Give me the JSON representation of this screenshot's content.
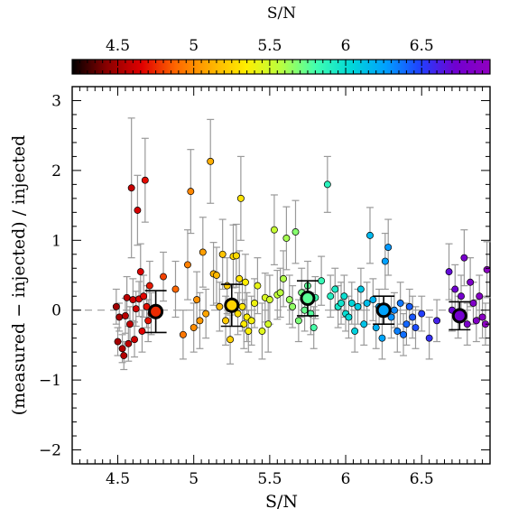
{
  "chart_data": {
    "type": "scatter",
    "xlabel": "S/N",
    "ylabel": "(measured − injected) / injected",
    "colorbar_label": "S/N",
    "xlim": [
      4.2,
      6.95
    ],
    "ylim": [
      -2.2,
      3.2
    ],
    "x_ticks": [
      "4.5",
      "5",
      "5.5",
      "6",
      "6.5"
    ],
    "x_tick_values": [
      4.5,
      5.0,
      5.5,
      6.0,
      6.5
    ],
    "y_ticks": [
      "−2",
      "−1",
      "0",
      "1",
      "2",
      "3"
    ],
    "y_tick_values": [
      -2,
      -1,
      0,
      1,
      2,
      3
    ],
    "colorbar_ticks": [
      "4.5",
      "5",
      "5.5",
      "6",
      "6.5"
    ],
    "colorbar_tick_values": [
      4.5,
      5.0,
      5.5,
      6.0,
      6.5
    ],
    "colormap": [
      "#000000",
      "#8b0000",
      "#e00000",
      "#ff6a00",
      "#ffb000",
      "#ffee00",
      "#b8ff40",
      "#40ffb0",
      "#00d8d8",
      "#00a0ff",
      "#2040ff",
      "#7000d0",
      "#9000c0"
    ],
    "reference_line": {
      "y": 0,
      "style": "dashed"
    },
    "grid": false,
    "points": [
      {
        "x": 4.49,
        "y": 0.05,
        "err": 0.25
      },
      {
        "x": 4.5,
        "y": -0.45,
        "err": 0.2
      },
      {
        "x": 4.51,
        "y": -0.1,
        "err": 0.2
      },
      {
        "x": 4.53,
        "y": -0.55,
        "err": 0.2
      },
      {
        "x": 4.54,
        "y": -0.65,
        "err": 0.2
      },
      {
        "x": 4.55,
        "y": -0.08,
        "err": 0.25
      },
      {
        "x": 4.56,
        "y": 0.18,
        "err": 0.3
      },
      {
        "x": 4.57,
        "y": -0.48,
        "err": 0.25
      },
      {
        "x": 4.58,
        "y": -0.2,
        "err": 0.25
      },
      {
        "x": 4.59,
        "y": 1.75,
        "err": 1.0
      },
      {
        "x": 4.6,
        "y": 0.15,
        "err": 0.3
      },
      {
        "x": 4.61,
        "y": -0.42,
        "err": 0.25
      },
      {
        "x": 4.62,
        "y": 0.02,
        "err": 0.25
      },
      {
        "x": 4.63,
        "y": 1.43,
        "err": 0.5
      },
      {
        "x": 4.64,
        "y": 0.16,
        "err": 0.25
      },
      {
        "x": 4.65,
        "y": 0.55,
        "err": 0.4
      },
      {
        "x": 4.66,
        "y": -0.3,
        "err": 0.3
      },
      {
        "x": 4.67,
        "y": 0.2,
        "err": 0.3
      },
      {
        "x": 4.68,
        "y": 1.86,
        "err": 0.6
      },
      {
        "x": 4.69,
        "y": 0.05,
        "err": 0.3
      },
      {
        "x": 4.7,
        "y": -0.15,
        "err": 0.3
      },
      {
        "x": 4.71,
        "y": 0.35,
        "err": 0.35
      },
      {
        "x": 4.72,
        "y": -0.05,
        "err": 0.3
      },
      {
        "x": 4.8,
        "y": 0.48,
        "err": 0.35
      },
      {
        "x": 4.88,
        "y": 0.3,
        "err": 0.4
      },
      {
        "x": 4.93,
        "y": -0.35,
        "err": 0.35
      },
      {
        "x": 4.96,
        "y": 0.65,
        "err": 0.5
      },
      {
        "x": 4.98,
        "y": 1.7,
        "err": 0.6
      },
      {
        "x": 5.0,
        "y": -0.25,
        "err": 0.35
      },
      {
        "x": 5.02,
        "y": 0.15,
        "err": 0.4
      },
      {
        "x": 5.04,
        "y": -0.15,
        "err": 0.4
      },
      {
        "x": 5.06,
        "y": 0.83,
        "err": 0.5
      },
      {
        "x": 5.08,
        "y": -0.05,
        "err": 0.35
      },
      {
        "x": 5.11,
        "y": 2.13,
        "err": 0.6
      },
      {
        "x": 5.13,
        "y": 0.52,
        "err": 0.45
      },
      {
        "x": 5.15,
        "y": 0.5,
        "err": 0.4
      },
      {
        "x": 5.17,
        "y": 0.05,
        "err": 0.35
      },
      {
        "x": 5.19,
        "y": 0.8,
        "err": 0.5
      },
      {
        "x": 5.21,
        "y": -0.15,
        "err": 0.35
      },
      {
        "x": 5.22,
        "y": 0.35,
        "err": 0.4
      },
      {
        "x": 5.24,
        "y": -0.42,
        "err": 0.35
      },
      {
        "x": 5.26,
        "y": 0.77,
        "err": 0.45
      },
      {
        "x": 5.28,
        "y": 0.78,
        "err": 0.45
      },
      {
        "x": 5.29,
        "y": -0.05,
        "err": 0.3
      },
      {
        "x": 5.3,
        "y": 0.45,
        "err": 0.4
      },
      {
        "x": 5.31,
        "y": 1.6,
        "err": 0.6
      },
      {
        "x": 5.32,
        "y": 0.05,
        "err": 0.35
      },
      {
        "x": 5.33,
        "y": -0.2,
        "err": 0.35
      },
      {
        "x": 5.34,
        "y": 0.4,
        "err": 0.4
      },
      {
        "x": 5.35,
        "y": -0.1,
        "err": 0.35
      },
      {
        "x": 5.36,
        "y": -0.3,
        "err": 0.3
      },
      {
        "x": 5.38,
        "y": -0.15,
        "err": 0.35
      },
      {
        "x": 5.4,
        "y": 0.1,
        "err": 0.35
      },
      {
        "x": 5.42,
        "y": 0.35,
        "err": 0.4
      },
      {
        "x": 5.45,
        "y": -0.3,
        "err": 0.4
      },
      {
        "x": 5.47,
        "y": 0.18,
        "err": 0.35
      },
      {
        "x": 5.49,
        "y": -0.2,
        "err": 0.4
      },
      {
        "x": 5.5,
        "y": 0.15,
        "err": 0.35
      },
      {
        "x": 5.53,
        "y": 1.15,
        "err": 0.5
      },
      {
        "x": 5.55,
        "y": 0.22,
        "err": 0.35
      },
      {
        "x": 5.57,
        "y": 0.25,
        "err": 0.35
      },
      {
        "x": 5.59,
        "y": 0.45,
        "err": 0.4
      },
      {
        "x": 5.61,
        "y": 1.03,
        "err": 0.45
      },
      {
        "x": 5.63,
        "y": 0.15,
        "err": 0.35
      },
      {
        "x": 5.65,
        "y": 0.05,
        "err": 0.3
      },
      {
        "x": 5.67,
        "y": 1.12,
        "err": 0.45
      },
      {
        "x": 5.69,
        "y": -0.15,
        "err": 0.3
      },
      {
        "x": 5.71,
        "y": 0.25,
        "err": 0.35
      },
      {
        "x": 5.73,
        "y": 0.0,
        "err": 0.3
      },
      {
        "x": 5.75,
        "y": 0.35,
        "err": 0.35
      },
      {
        "x": 5.77,
        "y": -0.05,
        "err": 0.3
      },
      {
        "x": 5.79,
        "y": -0.25,
        "err": 0.3
      },
      {
        "x": 5.8,
        "y": 0.18,
        "err": 0.3
      },
      {
        "x": 5.84,
        "y": 0.42,
        "err": 0.35
      },
      {
        "x": 5.88,
        "y": 1.8,
        "err": 0.4
      },
      {
        "x": 5.9,
        "y": 0.2,
        "err": 0.3
      },
      {
        "x": 5.93,
        "y": 0.3,
        "err": 0.3
      },
      {
        "x": 5.95,
        "y": 0.05,
        "err": 0.3
      },
      {
        "x": 5.97,
        "y": 0.1,
        "err": 0.3
      },
      {
        "x": 5.99,
        "y": 0.2,
        "err": 0.3
      },
      {
        "x": 6.0,
        "y": -0.05,
        "err": 0.25
      },
      {
        "x": 6.02,
        "y": -0.1,
        "err": 0.3
      },
      {
        "x": 6.04,
        "y": 0.1,
        "err": 0.3
      },
      {
        "x": 6.06,
        "y": -0.3,
        "err": 0.3
      },
      {
        "x": 6.08,
        "y": 0.05,
        "err": 0.25
      },
      {
        "x": 6.1,
        "y": 0.3,
        "err": 0.3
      },
      {
        "x": 6.12,
        "y": -0.2,
        "err": 0.3
      },
      {
        "x": 6.14,
        "y": 0.1,
        "err": 0.3
      },
      {
        "x": 6.16,
        "y": 1.07,
        "err": 0.4
      },
      {
        "x": 6.18,
        "y": 0.15,
        "err": 0.3
      },
      {
        "x": 6.2,
        "y": -0.25,
        "err": 0.3
      },
      {
        "x": 6.22,
        "y": 0.05,
        "err": 0.25
      },
      {
        "x": 6.24,
        "y": -0.4,
        "err": 0.3
      },
      {
        "x": 6.26,
        "y": 0.7,
        "err": 0.4
      },
      {
        "x": 6.28,
        "y": 0.9,
        "err": 0.4
      },
      {
        "x": 6.3,
        "y": -0.1,
        "err": 0.3
      },
      {
        "x": 6.32,
        "y": 0.0,
        "err": 0.25
      },
      {
        "x": 6.34,
        "y": -0.3,
        "err": 0.3
      },
      {
        "x": 6.36,
        "y": 0.1,
        "err": 0.3
      },
      {
        "x": 6.38,
        "y": -0.35,
        "err": 0.3
      },
      {
        "x": 6.4,
        "y": -0.2,
        "err": 0.3
      },
      {
        "x": 6.42,
        "y": 0.05,
        "err": 0.25
      },
      {
        "x": 6.44,
        "y": -0.1,
        "err": 0.3
      },
      {
        "x": 6.46,
        "y": -0.25,
        "err": 0.3
      },
      {
        "x": 6.5,
        "y": -0.05,
        "err": 0.25
      },
      {
        "x": 6.55,
        "y": -0.4,
        "err": 0.3
      },
      {
        "x": 6.6,
        "y": -0.15,
        "err": 0.3
      },
      {
        "x": 6.68,
        "y": 0.55,
        "err": 0.4
      },
      {
        "x": 6.7,
        "y": 0.0,
        "err": 0.3
      },
      {
        "x": 6.72,
        "y": 0.3,
        "err": 0.35
      },
      {
        "x": 6.74,
        "y": -0.1,
        "err": 0.3
      },
      {
        "x": 6.76,
        "y": 0.2,
        "err": 0.3
      },
      {
        "x": 6.78,
        "y": 0.75,
        "err": 0.4
      },
      {
        "x": 6.8,
        "y": -0.2,
        "err": 0.3
      },
      {
        "x": 6.82,
        "y": 0.4,
        "err": 0.35
      },
      {
        "x": 6.84,
        "y": 0.1,
        "err": 0.3
      },
      {
        "x": 6.86,
        "y": -0.15,
        "err": 0.3
      },
      {
        "x": 6.88,
        "y": 0.2,
        "err": 0.3
      },
      {
        "x": 6.9,
        "y": -0.1,
        "err": 0.3
      },
      {
        "x": 6.92,
        "y": -0.2,
        "err": 0.3
      },
      {
        "x": 6.93,
        "y": 0.58,
        "err": 0.4
      }
    ],
    "binned_means": [
      {
        "x": 4.75,
        "y": -0.02,
        "err": 0.3
      },
      {
        "x": 5.25,
        "y": 0.07,
        "err": 0.3
      },
      {
        "x": 5.75,
        "y": 0.17,
        "err": 0.25
      },
      {
        "x": 6.25,
        "y": 0.0,
        "err": 0.2
      },
      {
        "x": 6.75,
        "y": -0.08,
        "err": 0.2
      }
    ]
  }
}
